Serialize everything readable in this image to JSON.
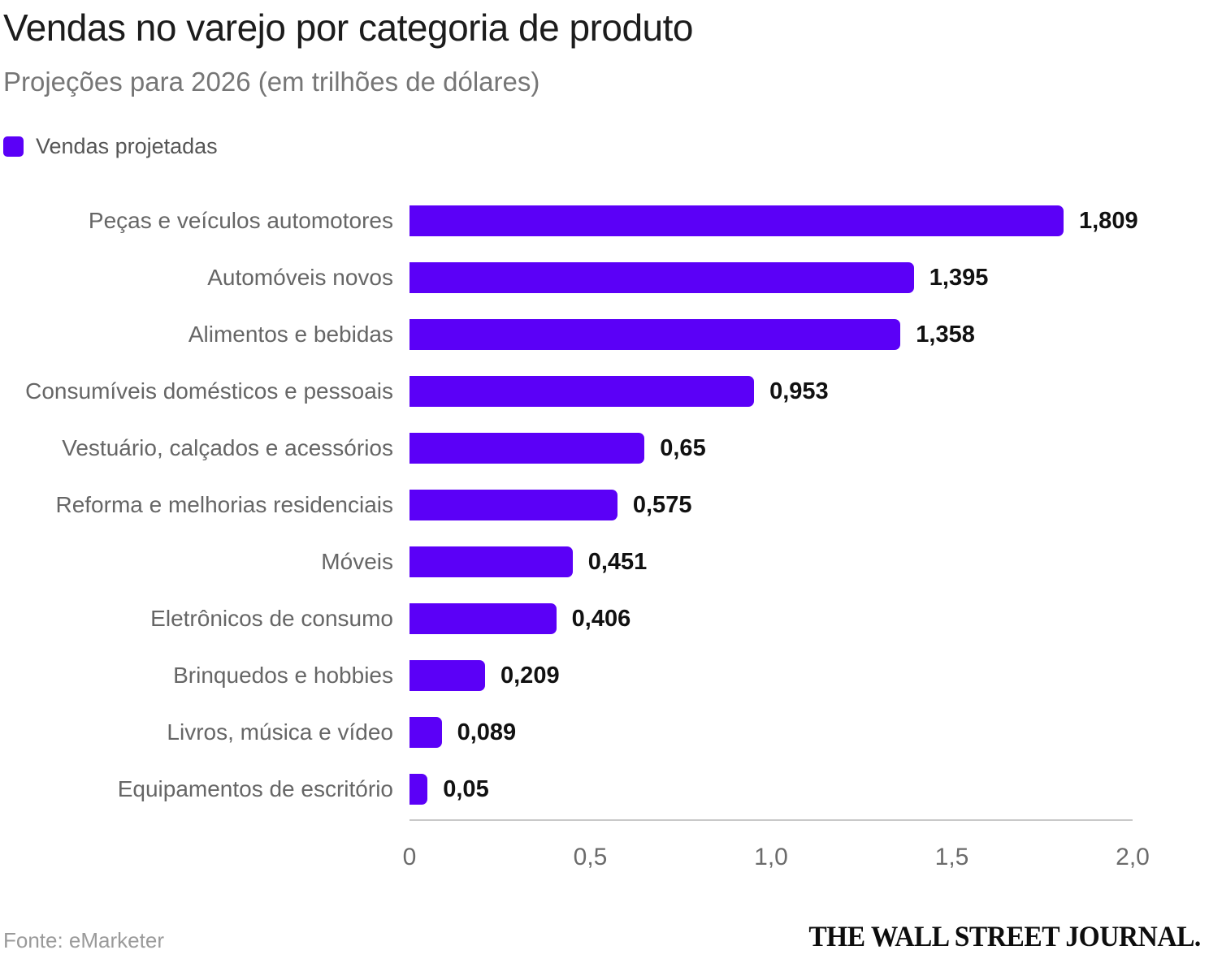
{
  "header": {
    "title": "Vendas no varejo por categoria de produto",
    "subtitle": "Projeções para 2026 (em trilhões de dólares)"
  },
  "legend": {
    "label": "Vendas projetadas",
    "color": "#5b00f7"
  },
  "chart_data": {
    "type": "bar",
    "orientation": "horizontal",
    "title": "Vendas no varejo por categoria de produto",
    "subtitle": "Projeções para 2026 (em trilhões de dólares)",
    "series_name": "Vendas projetadas",
    "categories": [
      "Peças e veículos automotores",
      "Automóveis novos",
      "Alimentos e bebidas",
      "Consumíveis domésticos e pessoais",
      "Vestuário, calçados e acessórios",
      "Reforma e melhorias residenciais",
      "Móveis",
      "Eletrônicos de consumo",
      "Brinquedos e hobbies",
      "Livros, música e vídeo",
      "Equipamentos de escritório"
    ],
    "values": [
      1.809,
      1.395,
      1.358,
      0.953,
      0.65,
      0.575,
      0.451,
      0.406,
      0.209,
      0.089,
      0.05
    ],
    "value_labels": [
      "1,809",
      "1,395",
      "1,358",
      "0,953",
      "0,65",
      "0,575",
      "0,451",
      "0,406",
      "0,209",
      "0,089",
      "0,05"
    ],
    "xlim": [
      0,
      2.0
    ],
    "x_ticks": [
      "0",
      "0,5",
      "1,0",
      "1,5",
      "2,0"
    ],
    "x_tick_values": [
      0,
      0.5,
      1.0,
      1.5,
      2.0
    ],
    "bar_color": "#5b00f7",
    "grid": false,
    "legend_position": "top-left"
  },
  "footer": {
    "source": "Fonte: eMarketer",
    "brand": "THE WALL STREET JOURNAL."
  }
}
